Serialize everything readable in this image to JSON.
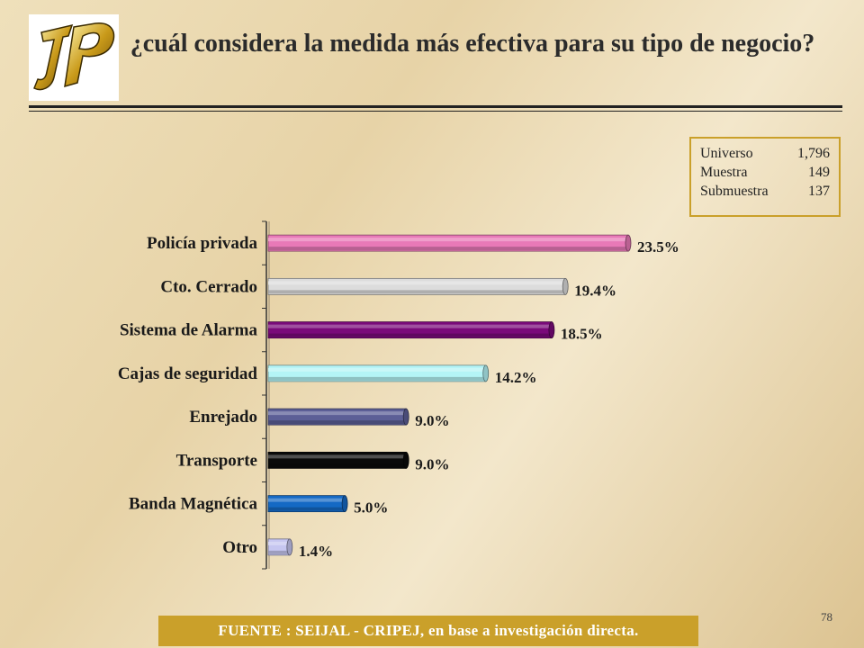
{
  "title": "¿cuál considera la medida más efectiva para su tipo de negocio?",
  "stats": [
    {
      "label": "Universo",
      "value": "1,796"
    },
    {
      "label": "Muestra",
      "value": "149"
    },
    {
      "label": "Submuestra",
      "value": "137"
    }
  ],
  "source": "FUENTE : SEIJAL - CRIPEJ, en base a investigación directa.",
  "page_number": "78",
  "chart_data": {
    "type": "bar",
    "orientation": "horizontal",
    "categories": [
      "Policía privada",
      "Cto. Cerrado",
      "Sistema de Alarma",
      "Cajas de seguridad",
      "Enrejado",
      "Transporte",
      "Banda Magnética",
      "Otro"
    ],
    "values": [
      23.5,
      19.4,
      18.5,
      14.2,
      9.0,
      9.0,
      5.0,
      1.4
    ],
    "value_labels": [
      "23.5%",
      "19.4%",
      "18.5%",
      "14.2%",
      "9.0%",
      "9.0%",
      "5.0%",
      "1.4%"
    ],
    "colors": [
      "#e879b7",
      "#dcdcdc",
      "#7a0a7a",
      "#b4f4f6",
      "#5c5f96",
      "#0a0a0a",
      "#1469c4",
      "#c6c6f0"
    ],
    "xlim": [
      0,
      23.5
    ],
    "xlabel": "",
    "ylabel": "",
    "grid": false
  }
}
